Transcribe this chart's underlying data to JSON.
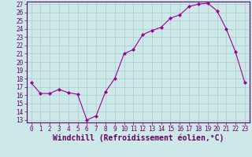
{
  "x": [
    0,
    1,
    2,
    3,
    4,
    5,
    6,
    7,
    8,
    9,
    10,
    11,
    12,
    13,
    14,
    15,
    16,
    17,
    18,
    19,
    20,
    21,
    22,
    23
  ],
  "y": [
    17.5,
    16.2,
    16.2,
    16.7,
    16.3,
    16.1,
    13.0,
    13.5,
    16.4,
    18.0,
    21.0,
    21.5,
    23.3,
    23.8,
    24.2,
    25.3,
    25.7,
    26.7,
    27.0,
    27.1,
    26.2,
    24.0,
    21.2,
    17.5
  ],
  "line_color": "#990099",
  "marker": "D",
  "marker_size": 2,
  "bg_color": "#cce8e8",
  "grid_color": "#aacccc",
  "xlabel": "Windchill (Refroidissement éolien,°C)",
  "ylim": [
    13,
    27
  ],
  "xlim": [
    -0.5,
    23.5
  ],
  "yticks": [
    13,
    14,
    15,
    16,
    17,
    18,
    19,
    20,
    21,
    22,
    23,
    24,
    25,
    26,
    27
  ],
  "xticks": [
    0,
    1,
    2,
    3,
    4,
    5,
    6,
    7,
    8,
    9,
    10,
    11,
    12,
    13,
    14,
    15,
    16,
    17,
    18,
    19,
    20,
    21,
    22,
    23
  ],
  "tick_fontsize": 5.5,
  "xlabel_fontsize": 7.0,
  "line_color_hex": "#880088",
  "axis_color": "#660066",
  "tick_color": "#660066"
}
